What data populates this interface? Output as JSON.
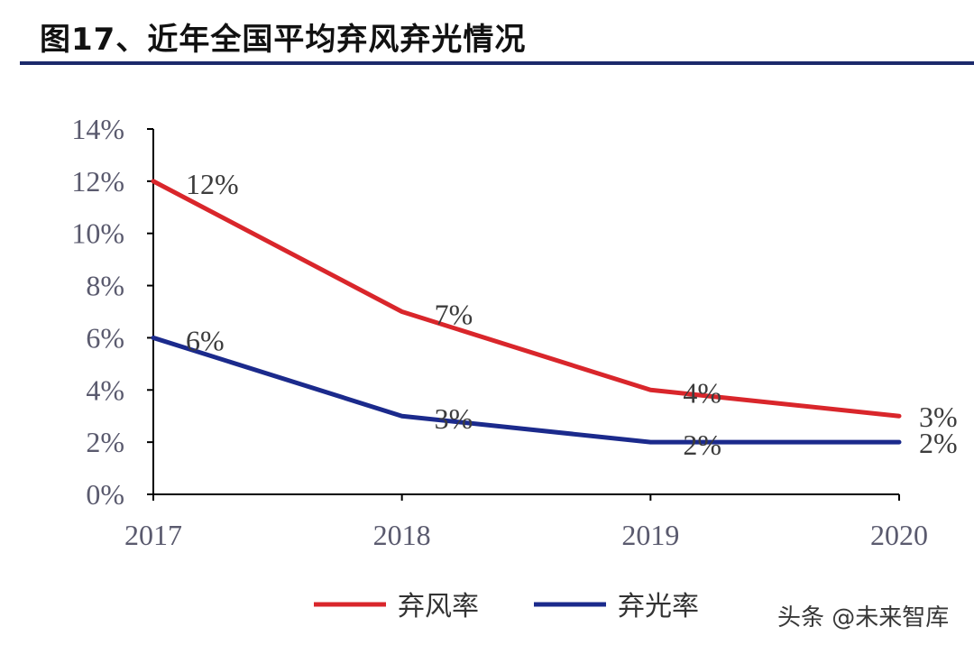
{
  "title": "图17、近年全国平均弃风弃光情况",
  "watermark": "头条 @未来智库",
  "colors": {
    "series_1": "#d9262b",
    "series_2": "#1b2a8c",
    "axis": "#000000",
    "title_rule": "#1c2a6b"
  },
  "chart_data": {
    "type": "line",
    "title": "图17、近年全国平均弃风弃光情况",
    "xlabel": "",
    "ylabel": "",
    "categories": [
      "2017",
      "2018",
      "2019",
      "2020"
    ],
    "ylim": [
      0,
      14
    ],
    "yticks": [
      0,
      2,
      4,
      6,
      8,
      10,
      12,
      14
    ],
    "ytick_labels": [
      "0%",
      "2%",
      "4%",
      "6%",
      "8%",
      "10%",
      "12%",
      "14%"
    ],
    "grid": false,
    "legend_position": "bottom-center",
    "series": [
      {
        "name": "弃风率",
        "color": "#d9262b",
        "values": [
          12,
          7,
          4,
          3
        ],
        "labels": [
          "12%",
          "7%",
          "4%",
          "3%"
        ]
      },
      {
        "name": "弃光率",
        "color": "#1b2a8c",
        "values": [
          6,
          3,
          2,
          2
        ],
        "labels": [
          "6%",
          "3%",
          "2%",
          "2%"
        ]
      }
    ]
  }
}
